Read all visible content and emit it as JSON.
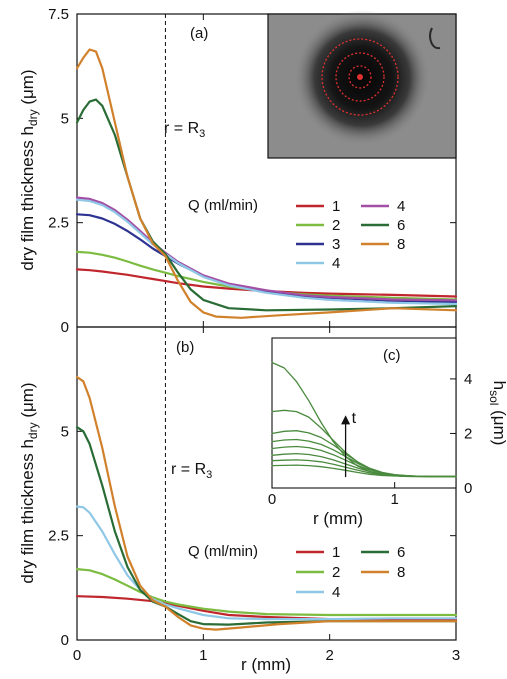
{
  "colors": {
    "axis": "#111111",
    "Q1": "#c0272d",
    "Q2": "#7cbc41",
    "Q3": "#2e3392",
    "Q4": "#8fc7e6",
    "Q4b": "#a34fa6",
    "Q6": "#2a6c35",
    "Q8": "#d1812c",
    "inset_c": "#4a8a3e",
    "photo_ring": "#e03030"
  },
  "chart_data": [
    {
      "id": "a",
      "type": "line",
      "panel_label": "(a)",
      "xlabel": "",
      "ylabel": "dry film thickness h",
      "ylabel_sub": "dry",
      "ylabel_unit": " (μm)",
      "xlim": [
        0,
        3
      ],
      "ylim": [
        0,
        7.5
      ],
      "yticks": [
        0,
        2.5,
        5,
        7.5
      ],
      "yticklabels": [
        "0",
        "2.5",
        "5",
        "7.5"
      ],
      "xticks": [
        0,
        1,
        2,
        3
      ],
      "xticklabels": [],
      "vline_x": 0.7,
      "vline_label": "r = R",
      "vline_label_sub": "3",
      "legend_title": "Q (ml/min)",
      "legend_placement": "middle-right, two columns",
      "inset": "grayscale photograph of a dark circular deposit with concentric red dotted rings and a red center dot",
      "series": [
        {
          "name": "1",
          "color": "#c0272d",
          "x": [
            0,
            0.1,
            0.2,
            0.3,
            0.4,
            0.5,
            0.6,
            0.7,
            0.8,
            1.0,
            1.2,
            1.5,
            1.8,
            2.0,
            2.5,
            3.0
          ],
          "y": [
            1.38,
            1.36,
            1.33,
            1.29,
            1.25,
            1.2,
            1.15,
            1.1,
            1.05,
            0.97,
            0.92,
            0.86,
            0.82,
            0.8,
            0.77,
            0.73
          ]
        },
        {
          "name": "2",
          "color": "#7cbc41",
          "x": [
            0,
            0.1,
            0.2,
            0.3,
            0.4,
            0.5,
            0.6,
            0.7,
            0.8,
            1.0,
            1.2,
            1.5,
            1.8,
            2.0,
            2.5,
            3.0
          ],
          "y": [
            1.8,
            1.78,
            1.73,
            1.66,
            1.57,
            1.47,
            1.38,
            1.3,
            1.22,
            1.08,
            0.97,
            0.85,
            0.78,
            0.75,
            0.7,
            0.66
          ]
        },
        {
          "name": "3",
          "color": "#2e3392",
          "x": [
            0,
            0.1,
            0.2,
            0.3,
            0.4,
            0.5,
            0.6,
            0.7,
            0.8,
            1.0,
            1.2,
            1.5,
            1.8,
            2.0,
            2.5,
            3.0
          ],
          "y": [
            2.7,
            2.68,
            2.6,
            2.47,
            2.3,
            2.1,
            1.88,
            1.7,
            1.52,
            1.22,
            1.02,
            0.85,
            0.74,
            0.7,
            0.63,
            0.6
          ]
        },
        {
          "name": "4",
          "color": "#a34fa6",
          "x": [
            0,
            0.1,
            0.2,
            0.3,
            0.4,
            0.5,
            0.6,
            0.7,
            0.8,
            1.0,
            1.2,
            1.5,
            1.8,
            2.0,
            2.5,
            3.0
          ],
          "y": [
            3.1,
            3.07,
            2.97,
            2.8,
            2.57,
            2.3,
            2.02,
            1.78,
            1.56,
            1.24,
            1.04,
            0.88,
            0.76,
            0.72,
            0.66,
            0.64
          ]
        },
        {
          "name": "4",
          "color": "#8fc7e6",
          "x": [
            0,
            0.1,
            0.2,
            0.3,
            0.4,
            0.5,
            0.6,
            0.7,
            0.8,
            1.0,
            1.2,
            1.5,
            1.8,
            2.0,
            2.5,
            3.0
          ],
          "y": [
            3.05,
            3.02,
            2.92,
            2.75,
            2.52,
            2.25,
            1.98,
            1.75,
            1.53,
            1.2,
            1.0,
            0.82,
            0.7,
            0.65,
            0.58,
            0.55
          ]
        },
        {
          "name": "6",
          "color": "#2a6c35",
          "x": [
            0,
            0.05,
            0.1,
            0.15,
            0.2,
            0.3,
            0.4,
            0.5,
            0.6,
            0.7,
            0.8,
            0.9,
            1.0,
            1.2,
            1.5,
            2.0,
            2.5,
            3.0
          ],
          "y": [
            4.9,
            5.2,
            5.4,
            5.45,
            5.3,
            4.6,
            3.6,
            2.6,
            2.05,
            1.75,
            1.3,
            0.9,
            0.65,
            0.45,
            0.4,
            0.42,
            0.45,
            0.5
          ]
        },
        {
          "name": "8",
          "color": "#d1812c",
          "x": [
            0,
            0.05,
            0.1,
            0.15,
            0.2,
            0.3,
            0.4,
            0.5,
            0.6,
            0.7,
            0.8,
            0.9,
            1.0,
            1.1,
            1.3,
            1.6,
            2.0,
            2.5,
            3.0
          ],
          "y": [
            6.2,
            6.45,
            6.65,
            6.6,
            6.2,
            4.9,
            3.6,
            2.6,
            2.0,
            1.7,
            1.1,
            0.6,
            0.35,
            0.25,
            0.22,
            0.28,
            0.35,
            0.45,
            0.4
          ]
        }
      ]
    },
    {
      "id": "b",
      "type": "line",
      "panel_label": "(b)",
      "xlabel": "r (mm)",
      "ylabel": "dry film thickness h",
      "ylabel_sub": "dry",
      "ylabel_unit": " (μm)",
      "xlim": [
        0,
        3
      ],
      "ylim": [
        0,
        7.5
      ],
      "yticks": [
        0,
        2.5,
        5
      ],
      "yticklabels": [
        "0",
        "2.5",
        "5"
      ],
      "xticks": [
        0,
        1,
        2,
        3
      ],
      "xticklabels": [
        "0",
        "1",
        "2",
        "3"
      ],
      "vline_x": 0.7,
      "vline_label": "r = R",
      "vline_label_sub": "3",
      "legend_title": "Q (ml/min)",
      "legend_placement": "lower-middle, two columns",
      "series": [
        {
          "name": "1",
          "color": "#c0272d",
          "x": [
            0,
            0.2,
            0.4,
            0.6,
            0.7,
            0.8,
            1.0,
            1.2,
            1.5,
            2.0,
            2.5,
            3.0
          ],
          "y": [
            1.05,
            1.03,
            0.99,
            0.93,
            0.88,
            0.82,
            0.7,
            0.6,
            0.55,
            0.5,
            0.49,
            0.48
          ]
        },
        {
          "name": "2",
          "color": "#7cbc41",
          "x": [
            0,
            0.1,
            0.2,
            0.3,
            0.4,
            0.5,
            0.6,
            0.7,
            0.8,
            1.0,
            1.2,
            1.5,
            2.0,
            2.5,
            3.0
          ],
          "y": [
            1.7,
            1.67,
            1.58,
            1.45,
            1.3,
            1.15,
            1.02,
            0.92,
            0.85,
            0.75,
            0.68,
            0.62,
            0.6,
            0.6,
            0.6
          ]
        },
        {
          "name": "4",
          "color": "#8fc7e6",
          "x": [
            0,
            0.05,
            0.1,
            0.2,
            0.3,
            0.4,
            0.5,
            0.6,
            0.7,
            0.8,
            1.0,
            1.2,
            1.5,
            2.0,
            2.5,
            3.0
          ],
          "y": [
            3.2,
            3.18,
            3.05,
            2.6,
            2.05,
            1.55,
            1.2,
            0.98,
            0.85,
            0.76,
            0.6,
            0.52,
            0.5,
            0.5,
            0.52,
            0.52
          ]
        },
        {
          "name": "6",
          "color": "#2a6c35",
          "x": [
            0,
            0.05,
            0.1,
            0.2,
            0.3,
            0.4,
            0.5,
            0.6,
            0.7,
            0.8,
            0.9,
            1.0,
            1.2,
            1.5,
            2.0,
            2.5,
            3.0
          ],
          "y": [
            5.1,
            5.0,
            4.7,
            3.7,
            2.6,
            1.75,
            1.2,
            0.92,
            0.8,
            0.62,
            0.45,
            0.38,
            0.37,
            0.42,
            0.45,
            0.45,
            0.45
          ]
        },
        {
          "name": "8",
          "color": "#d1812c",
          "x": [
            0,
            0.05,
            0.1,
            0.2,
            0.3,
            0.4,
            0.5,
            0.6,
            0.7,
            0.8,
            0.9,
            1.0,
            1.1,
            1.3,
            1.6,
            2.0,
            2.5,
            3.0
          ],
          "y": [
            6.3,
            6.2,
            5.8,
            4.6,
            3.2,
            2.0,
            1.3,
            0.95,
            0.8,
            0.55,
            0.35,
            0.27,
            0.25,
            0.3,
            0.38,
            0.45,
            0.45,
            0.45
          ]
        }
      ]
    },
    {
      "id": "c",
      "type": "line",
      "panel_label": "(c)",
      "xlabel": "r (mm)",
      "ylabel": "h",
      "ylabel_sub": "sol",
      "ylabel_unit": " (μm)",
      "xlim": [
        0,
        1.5
      ],
      "ylim": [
        0,
        5.5
      ],
      "xticks": [
        0,
        1
      ],
      "xticklabels": [
        "0",
        "1"
      ],
      "yticks": [
        0,
        2,
        4
      ],
      "yticklabels": [
        "0",
        "2",
        "4"
      ],
      "yaxis_side": "right",
      "arrow_label": "t",
      "arrow_x": 0.6,
      "arrow_y_from": 0.4,
      "arrow_y_to": 2.6,
      "series": [
        {
          "color": "#4a8a3e",
          "x": [
            0,
            0.1,
            0.2,
            0.3,
            0.4,
            0.5,
            0.6,
            0.7,
            0.8,
            0.9,
            1.0,
            1.1,
            1.2,
            1.3,
            1.4,
            1.5
          ],
          "y": [
            4.6,
            4.4,
            3.9,
            3.2,
            2.4,
            1.7,
            1.15,
            0.8,
            0.6,
            0.5,
            0.45,
            0.42,
            0.42,
            0.42,
            0.42,
            0.42
          ]
        },
        {
          "color": "#4a8a3e",
          "x": [
            0,
            0.1,
            0.2,
            0.3,
            0.4,
            0.5,
            0.6,
            0.7,
            0.8,
            0.9,
            1.0,
            1.1,
            1.2,
            1.3,
            1.4,
            1.5
          ],
          "y": [
            2.8,
            2.85,
            2.8,
            2.6,
            2.2,
            1.75,
            1.3,
            0.95,
            0.7,
            0.55,
            0.48,
            0.44,
            0.42,
            0.42,
            0.42,
            0.42
          ]
        },
        {
          "color": "#4a8a3e",
          "x": [
            0,
            0.1,
            0.2,
            0.3,
            0.4,
            0.5,
            0.6,
            0.7,
            0.8,
            0.9,
            1.0,
            1.1,
            1.2,
            1.3,
            1.4,
            1.5
          ],
          "y": [
            2.0,
            2.08,
            2.1,
            2.02,
            1.85,
            1.58,
            1.25,
            0.95,
            0.72,
            0.57,
            0.49,
            0.45,
            0.43,
            0.42,
            0.42,
            0.42
          ]
        },
        {
          "color": "#4a8a3e",
          "x": [
            0,
            0.1,
            0.2,
            0.3,
            0.4,
            0.5,
            0.6,
            0.7,
            0.8,
            0.9,
            1.0,
            1.1,
            1.2,
            1.3,
            1.4,
            1.5
          ],
          "y": [
            1.7,
            1.76,
            1.78,
            1.72,
            1.6,
            1.4,
            1.15,
            0.9,
            0.7,
            0.56,
            0.48,
            0.45,
            0.43,
            0.42,
            0.42,
            0.42
          ]
        },
        {
          "color": "#4a8a3e",
          "x": [
            0,
            0.1,
            0.2,
            0.3,
            0.4,
            0.5,
            0.6,
            0.7,
            0.8,
            0.9,
            1.0,
            1.1,
            1.2,
            1.3,
            1.4,
            1.5
          ],
          "y": [
            1.45,
            1.5,
            1.52,
            1.48,
            1.38,
            1.22,
            1.02,
            0.82,
            0.66,
            0.54,
            0.47,
            0.44,
            0.43,
            0.42,
            0.42,
            0.42
          ]
        },
        {
          "color": "#4a8a3e",
          "x": [
            0,
            0.1,
            0.2,
            0.3,
            0.4,
            0.5,
            0.6,
            0.7,
            0.8,
            0.9,
            1.0,
            1.1,
            1.2,
            1.3,
            1.4,
            1.5
          ],
          "y": [
            1.2,
            1.24,
            1.26,
            1.23,
            1.15,
            1.03,
            0.88,
            0.73,
            0.6,
            0.51,
            0.46,
            0.44,
            0.43,
            0.42,
            0.42,
            0.42
          ]
        },
        {
          "color": "#4a8a3e",
          "x": [
            0,
            0.1,
            0.2,
            0.3,
            0.4,
            0.5,
            0.6,
            0.7,
            0.8,
            0.9,
            1.0,
            1.1,
            1.2,
            1.3,
            1.4,
            1.5
          ],
          "y": [
            1.0,
            1.02,
            1.03,
            1.01,
            0.96,
            0.87,
            0.76,
            0.65,
            0.55,
            0.49,
            0.45,
            0.43,
            0.42,
            0.42,
            0.42,
            0.42
          ]
        },
        {
          "color": "#4a8a3e",
          "x": [
            0,
            0.1,
            0.2,
            0.3,
            0.4,
            0.5,
            0.6,
            0.7,
            0.8,
            0.9,
            1.0,
            1.1,
            1.2,
            1.3,
            1.4,
            1.5
          ],
          "y": [
            0.82,
            0.83,
            0.84,
            0.82,
            0.78,
            0.72,
            0.65,
            0.57,
            0.5,
            0.46,
            0.44,
            0.43,
            0.42,
            0.42,
            0.42,
            0.42
          ]
        }
      ]
    }
  ]
}
